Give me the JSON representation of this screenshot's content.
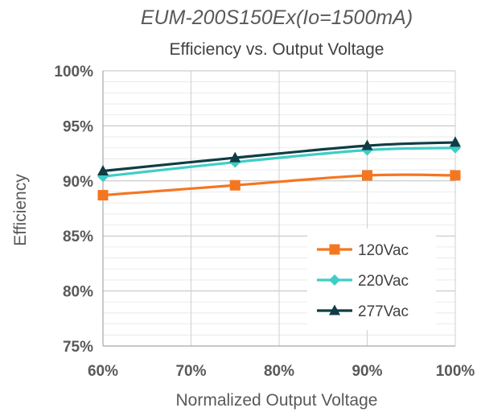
{
  "chart_data": {
    "type": "line",
    "title": "EUM-200S150Ex(Io=1500mA)",
    "subtitle": "Efficiency vs. Output Voltage",
    "xlabel": "Normalized Output Voltage",
    "ylabel": "Efficiency",
    "x": [
      60,
      75,
      90,
      100
    ],
    "xlim": [
      60,
      100
    ],
    "ylim": [
      75,
      100
    ],
    "x_ticks": [
      60,
      70,
      80,
      90,
      100
    ],
    "y_ticks": [
      75,
      80,
      85,
      90,
      95,
      100
    ],
    "x_tick_labels": [
      "60%",
      "70%",
      "80%",
      "90%",
      "100%"
    ],
    "y_tick_labels": [
      "75%",
      "80%",
      "85%",
      "90%",
      "95%",
      "100%"
    ],
    "grid": true,
    "legend_position": "bottom-right",
    "series": [
      {
        "name": "120Vac",
        "values": [
          88.7,
          89.6,
          90.5,
          90.5
        ],
        "color": "#f47621",
        "marker": "square"
      },
      {
        "name": "220Vac",
        "values": [
          90.4,
          91.7,
          92.8,
          93.0
        ],
        "color": "#3fcdc6",
        "marker": "diamond"
      },
      {
        "name": "277Vac",
        "values": [
          90.9,
          92.1,
          93.2,
          93.5
        ],
        "color": "#0f3d45",
        "marker": "triangle"
      }
    ]
  }
}
